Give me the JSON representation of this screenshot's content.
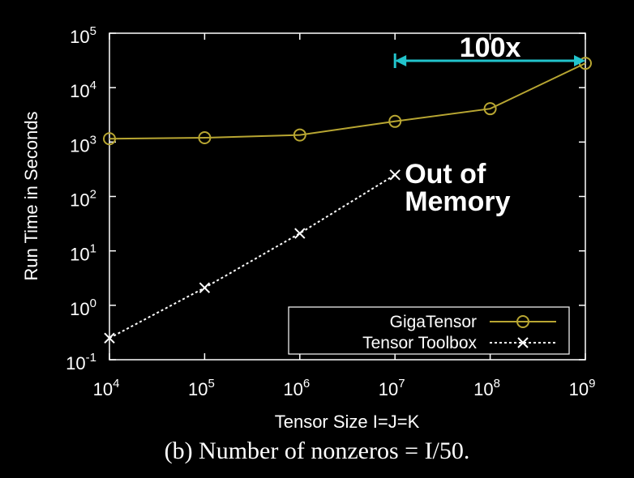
{
  "chart_data": {
    "type": "line",
    "x_scale": "log",
    "y_scale": "log",
    "x": [
      10000,
      100000,
      1000000,
      10000000,
      100000000,
      1000000000
    ],
    "xlim": [
      10000,
      1000000000
    ],
    "ylim": [
      0.1,
      100000
    ],
    "x_ticks": [
      {
        "base": "10",
        "exp": "4"
      },
      {
        "base": "10",
        "exp": "5"
      },
      {
        "base": "10",
        "exp": "6"
      },
      {
        "base": "10",
        "exp": "7"
      },
      {
        "base": "10",
        "exp": "8"
      },
      {
        "base": "10",
        "exp": "9"
      }
    ],
    "y_ticks": [
      {
        "base": "10",
        "exp": "-1"
      },
      {
        "base": "10",
        "exp": "0"
      },
      {
        "base": "10",
        "exp": "1"
      },
      {
        "base": "10",
        "exp": "2"
      },
      {
        "base": "10",
        "exp": "3"
      },
      {
        "base": "10",
        "exp": "4"
      },
      {
        "base": "10",
        "exp": "5"
      }
    ],
    "xlabel": "Tensor Size I=J=K",
    "ylabel": "Run Time in Seconds",
    "series": [
      {
        "name": "GigaTensor",
        "color": "#b8a632",
        "marker": "circle",
        "line": "solid",
        "x": [
          10000,
          100000,
          1000000,
          10000000,
          100000000,
          1000000000
        ],
        "values": [
          1150,
          1200,
          1350,
          2400,
          4100,
          28000
        ]
      },
      {
        "name": "Tensor Toolbox",
        "color": "#ffffff",
        "marker": "x",
        "line": "dotted",
        "x": [
          10000,
          100000,
          1000000,
          10000000
        ],
        "values": [
          0.25,
          2.1,
          21,
          250
        ]
      }
    ],
    "legend_position": "bottom-right",
    "grid": false,
    "annotations": [
      {
        "text": "100x",
        "color": "#22c4cc",
        "type": "double-arrow",
        "x_from": 10000000,
        "x_to": 1000000000,
        "y": 28000
      },
      {
        "text": "Out of Memory",
        "lines": [
          "Out of",
          "Memory"
        ],
        "x": 10000000,
        "y": 250
      }
    ]
  },
  "caption": "(b) Number of nonzeros = I/50."
}
